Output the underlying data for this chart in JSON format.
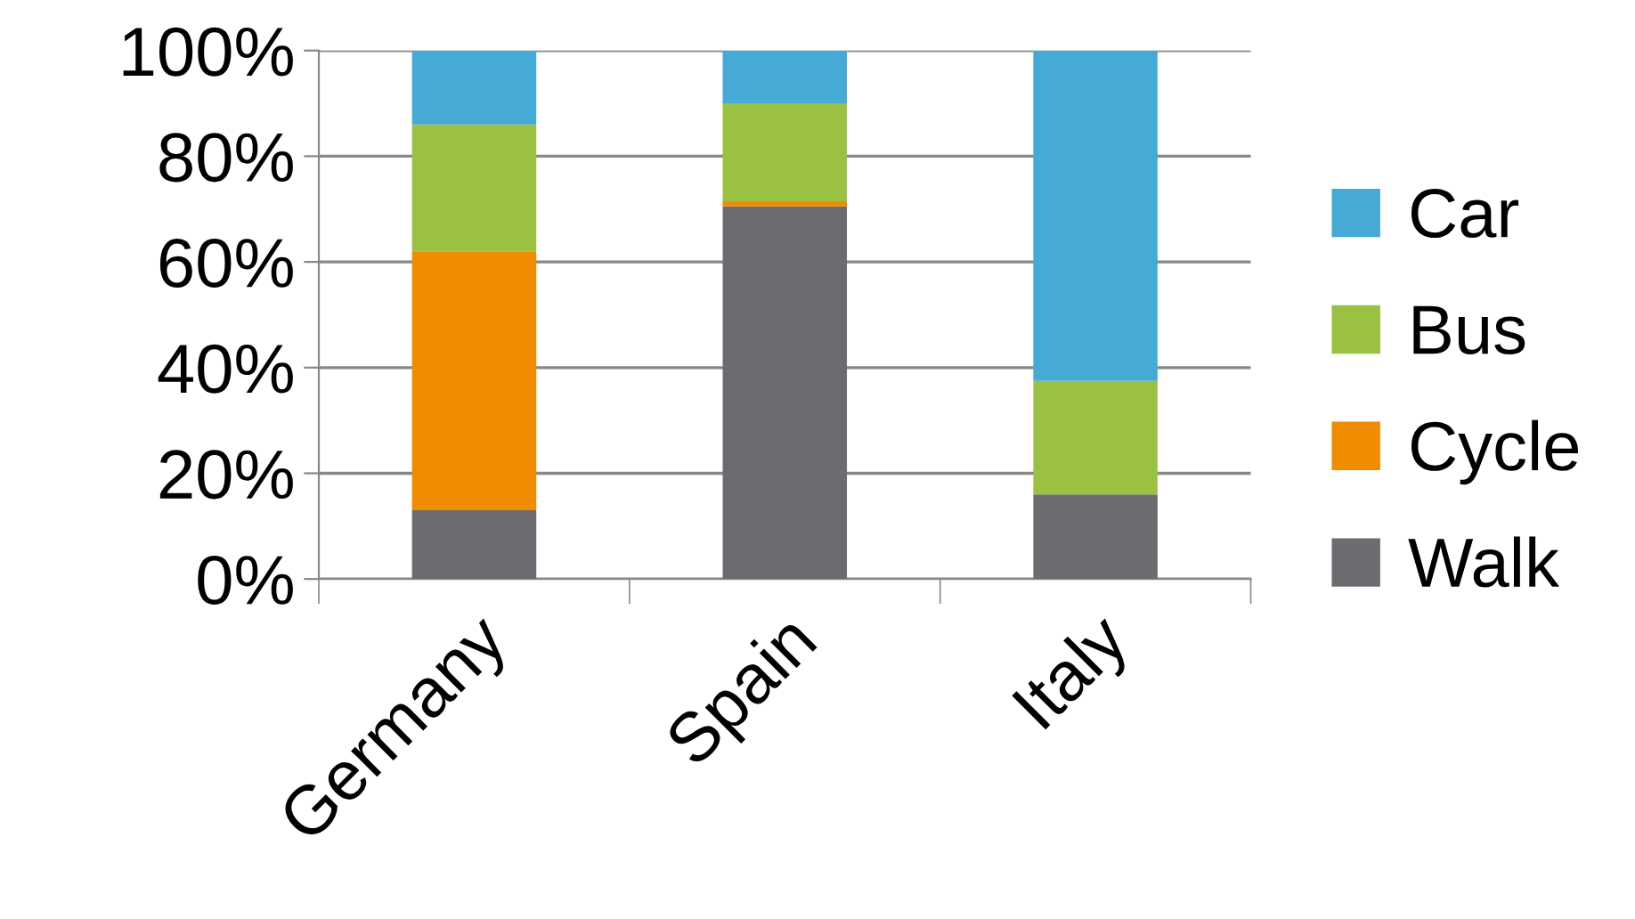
{
  "chart_data": {
    "type": "bar",
    "stacked": true,
    "categories": [
      "Germany",
      "Spain",
      "Italy"
    ],
    "series": [
      {
        "name": "Walk",
        "color": "#6b6c70",
        "values": [
          13,
          70.5,
          16
        ]
      },
      {
        "name": "Cycle",
        "color": "#f08c00",
        "values": [
          49,
          1,
          0
        ]
      },
      {
        "name": "Bus",
        "color": "#9bc142",
        "values": [
          24,
          18.5,
          21.5
        ]
      },
      {
        "name": "Car",
        "color": "#46aad6",
        "values": [
          14,
          10,
          62.5
        ]
      }
    ],
    "ylim": [
      0,
      100
    ],
    "yticks": [
      {
        "value": 0,
        "label": "0%"
      },
      {
        "value": 20,
        "label": "20%"
      },
      {
        "value": 40,
        "label": "40%"
      },
      {
        "value": 60,
        "label": "60%"
      },
      {
        "value": 80,
        "label": "80%"
      },
      {
        "value": 100,
        "label": "100%"
      }
    ],
    "grid": "y",
    "legend": "right"
  }
}
